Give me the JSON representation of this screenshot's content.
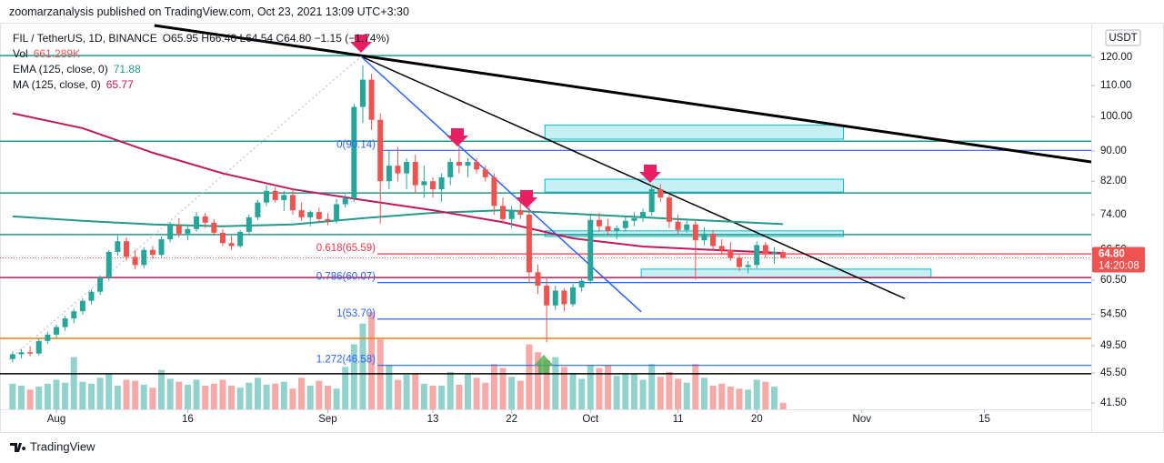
{
  "header": "zoomarzanalysis published on TradingView.com, Oct 23, 2021 13:09 UTC+3:30",
  "footer": "TradingView",
  "legend": {
    "symbol": "FIL / TetherUS, 1D, BINANCE",
    "ohlc": "O65.95 H66.40 L64.54 C64.80 −1.15 (−1.74%)",
    "vol_name": "Vol",
    "vol_value": "661.289K",
    "ema_name": "EMA (125, close, 0)",
    "ema_value": "71.88",
    "ma_name": "MA (125, close, 0)",
    "ma_value": "65.77"
  },
  "chart_data": {
    "type": "candlestick",
    "currency": "USDT",
    "price_label": "64.80",
    "countdown": "14:20:08",
    "log": true,
    "grid": false,
    "up_color": "#26a69a",
    "down_color": "#ef5350",
    "ylim": [
      40.7,
      133.4
    ],
    "yticks": [
      {
        "value": 120,
        "label": "120.00"
      },
      {
        "value": 110,
        "label": "110.00"
      },
      {
        "value": 100,
        "label": "100.00"
      },
      {
        "value": 90,
        "label": "90.00"
      },
      {
        "value": 82,
        "label": "82.00"
      },
      {
        "value": 74,
        "label": "74.00"
      },
      {
        "value": 66.5,
        "label": "66.50"
      },
      {
        "value": 60.5,
        "label": "60.50"
      },
      {
        "value": 54.5,
        "label": "54.50"
      },
      {
        "value": 49.5,
        "label": "49.50"
      },
      {
        "value": 45.5,
        "label": "45.50"
      },
      {
        "value": 41.5,
        "label": "41.50"
      }
    ],
    "xlim": [
      -0.4,
      123.2
    ],
    "xticks": [
      {
        "value": 5,
        "label": "Aug"
      },
      {
        "value": 20,
        "label": "16"
      },
      {
        "value": 36,
        "label": "Sep"
      },
      {
        "value": 48,
        "label": "13"
      },
      {
        "value": 57,
        "label": "22"
      },
      {
        "value": 66,
        "label": "Oct"
      },
      {
        "value": 76,
        "label": "11"
      },
      {
        "value": 85,
        "label": "20"
      },
      {
        "value": 97,
        "label": "Nov"
      },
      {
        "value": 111,
        "label": "15"
      }
    ],
    "candles": [
      [
        47.5,
        48.6,
        47,
        48.2
      ],
      [
        48.2,
        49,
        47.6,
        48.5
      ],
      [
        48.5,
        49.4,
        47.9,
        48.3
      ],
      [
        48.3,
        50.6,
        48,
        50.2
      ],
      [
        50.2,
        51.6,
        49.8,
        51.2
      ],
      [
        51.2,
        52.8,
        50.6,
        52.4
      ],
      [
        52.4,
        54.2,
        51.8,
        53.8
      ],
      [
        53.8,
        55.4,
        53,
        55
      ],
      [
        55,
        57.2,
        54.4,
        56.8
      ],
      [
        56.8,
        58.8,
        56.2,
        58.4
      ],
      [
        58.4,
        61.4,
        57.8,
        61
      ],
      [
        61,
        66.4,
        60.4,
        66
      ],
      [
        66,
        69.4,
        65.2,
        68.2
      ],
      [
        68.2,
        69,
        64.2,
        65
      ],
      [
        65,
        66.4,
        62.6,
        63.4
      ],
      [
        63.4,
        67,
        62.8,
        66.4
      ],
      [
        66.4,
        67.2,
        64.6,
        65.4
      ],
      [
        65.4,
        69.2,
        65,
        68.6
      ],
      [
        68.6,
        72.4,
        68,
        71.6
      ],
      [
        71.6,
        73.2,
        69,
        69.8
      ],
      [
        69.8,
        71.4,
        68.4,
        70.8
      ],
      [
        70.8,
        74.6,
        70.2,
        73.6
      ],
      [
        73.6,
        74.4,
        71,
        72.2
      ],
      [
        72.2,
        73,
        69.4,
        70
      ],
      [
        70,
        70.8,
        67.2,
        67.8
      ],
      [
        67.8,
        69.4,
        66.4,
        67.2
      ],
      [
        67.2,
        70.6,
        66.8,
        70.2
      ],
      [
        70.2,
        74,
        69.8,
        73.4
      ],
      [
        73.4,
        77.4,
        72.8,
        76.8
      ],
      [
        76.8,
        81,
        76,
        79.6
      ],
      [
        79.6,
        80.4,
        76.8,
        77.4
      ],
      [
        77.4,
        79.6,
        74.8,
        78.6
      ],
      [
        78.6,
        80,
        74,
        75
      ],
      [
        75,
        76.8,
        72.6,
        73.4
      ],
      [
        73.4,
        75,
        71.4,
        74.6
      ],
      [
        74.6,
        75.6,
        72.4,
        73
      ],
      [
        73,
        74.4,
        71.6,
        72.6
      ],
      [
        72.6,
        77.6,
        72,
        76.4
      ],
      [
        76.4,
        78.8,
        75.6,
        77.8
      ],
      [
        77.8,
        104,
        77,
        103
      ],
      [
        103,
        117,
        98,
        112
      ],
      [
        112,
        114,
        96,
        99
      ],
      [
        99,
        101,
        72,
        82
      ],
      [
        82,
        90,
        80,
        86
      ],
      [
        86,
        91,
        82,
        84
      ],
      [
        84,
        88,
        80,
        87
      ],
      [
        87,
        89,
        79,
        81
      ],
      [
        81,
        86,
        78,
        82
      ],
      [
        82,
        83,
        78,
        80
      ],
      [
        80,
        84,
        77,
        83
      ],
      [
        83,
        88,
        81,
        87
      ],
      [
        87,
        91,
        84,
        86
      ],
      [
        86,
        88,
        83,
        87
      ],
      [
        87,
        88,
        84,
        85
      ],
      [
        85,
        86,
        82,
        83
      ],
      [
        83,
        84,
        74,
        76
      ],
      [
        76,
        78,
        72,
        73
      ],
      [
        73,
        76,
        71,
        75
      ],
      [
        75,
        77,
        73,
        74
      ],
      [
        74,
        76,
        60,
        62
      ],
      [
        62,
        63.5,
        58,
        59.5
      ],
      [
        59.5,
        61,
        50,
        56
      ],
      [
        56,
        59.5,
        55.2,
        58.6
      ],
      [
        58.6,
        59,
        55,
        56.2
      ],
      [
        56.2,
        59.8,
        55.8,
        59.2
      ],
      [
        59.2,
        61,
        58.4,
        60.4
      ],
      [
        60.4,
        74,
        59.8,
        72.8
      ],
      [
        72.8,
        74.4,
        70.2,
        71.4
      ],
      [
        71.4,
        73,
        69.4,
        70.4
      ],
      [
        70.4,
        71.6,
        68.6,
        71
      ],
      [
        71,
        73.4,
        70.2,
        72.6
      ],
      [
        72.6,
        74.6,
        71.4,
        73.2
      ],
      [
        73.2,
        75.4,
        72.4,
        74.6
      ],
      [
        74.6,
        81,
        73.8,
        80
      ],
      [
        80,
        81.2,
        77,
        78
      ],
      [
        78,
        78.6,
        71,
        72.4
      ],
      [
        72.4,
        74,
        69.6,
        70.6
      ],
      [
        70.6,
        73,
        70,
        71.8
      ],
      [
        71.8,
        72.6,
        60.6,
        68.4
      ],
      [
        68.4,
        71.2,
        67.4,
        69.8
      ],
      [
        69.8,
        70.6,
        66.4,
        67.2
      ],
      [
        67.2,
        68.6,
        65.4,
        66.4
      ],
      [
        66.4,
        68,
        64.2,
        64.8
      ],
      [
        64.8,
        65.4,
        62.2,
        63
      ],
      [
        63,
        64.2,
        61.8,
        63.4
      ],
      [
        63.4,
        68.2,
        62.8,
        67.4
      ],
      [
        67.4,
        68,
        64.8,
        65.6
      ],
      [
        65.6,
        67,
        63.6,
        65.95
      ],
      [
        65.95,
        66.4,
        64.54,
        64.8
      ]
    ],
    "volume": [
      2600,
      2400,
      2000,
      2300,
      2600,
      3000,
      2700,
      5300,
      2800,
      2600,
      3200,
      3600,
      2400,
      3000,
      2900,
      2500,
      2200,
      4000,
      3100,
      2800,
      2500,
      3000,
      2400,
      2600,
      3000,
      2400,
      2200,
      2700,
      3200,
      2500,
      2600,
      2800,
      2100,
      3200,
      2400,
      2900,
      2400,
      2100,
      4300,
      6600,
      8700,
      9900,
      7100,
      4500,
      3000,
      3500,
      3600,
      2600,
      2400,
      2400,
      3800,
      2500,
      3600,
      3200,
      2700,
      4600,
      4200,
      3300,
      2900,
      6600,
      5800,
      5000,
      5300,
      4300,
      3700,
      3100,
      4500,
      4200,
      4500,
      3400,
      3600,
      3600,
      3000,
      4600,
      3300,
      3800,
      3100,
      2700,
      4600,
      3200,
      2400,
      2600,
      2300,
      2100,
      2000,
      3000,
      2800,
      2300,
      661.289
    ],
    "vlim": [
      0,
      12000
    ],
    "lines": [
      {
        "name": "EMA (125, close, 0)",
        "color": "#22998a",
        "x": [
          0,
          8,
          16,
          24,
          32,
          40,
          48,
          56,
          64,
          72,
          80,
          88
        ],
        "values": [
          73.6,
          72.6,
          71.8,
          71.4,
          71.8,
          73.2,
          74.4,
          75,
          74.2,
          73.4,
          72.6,
          71.88
        ]
      },
      {
        "name": "MA (125, close, 0)",
        "color": "#c2185b",
        "x": [
          0,
          8,
          16,
          24,
          32,
          40,
          48,
          56,
          64,
          72,
          80,
          88
        ],
        "values": [
          101,
          96.5,
          89.5,
          84,
          80,
          77.4,
          75,
          72.3,
          68.8,
          67.1,
          66.4,
          65.77
        ]
      }
    ],
    "hlines": [
      {
        "value": 120.6,
        "color": "#22998a"
      },
      {
        "value": 92.7,
        "color": "#22998a"
      },
      {
        "value": 79.1,
        "color": "#22998a"
      },
      {
        "value": 69.6,
        "color": "#22998a"
      },
      {
        "value": 61.0,
        "color": "#c2185b"
      },
      {
        "value": 50.6,
        "color": "#f57c00"
      },
      {
        "value": 45.4,
        "color": "#000000"
      }
    ],
    "fib": [
      {
        "label": "0(90.14)",
        "value": 90.14,
        "color": "#2962ff"
      },
      {
        "label": "0.618(65.59)",
        "value": 65.59,
        "color": "#f23645"
      },
      {
        "label": "0.786(60.07)",
        "value": 60.07,
        "color": "#2962ff"
      },
      {
        "label": "1(53.70)",
        "value": 53.7,
        "color": "#2962ff"
      },
      {
        "label": "1.272(46.58)",
        "value": 46.58,
        "color": "#2962ff"
      }
    ],
    "zones": [
      {
        "x": [
          60.8,
          94.9
        ],
        "y": [
          93.3,
          97.4
        ]
      },
      {
        "x": [
          60.8,
          94.9
        ],
        "y": [
          79.3,
          82.5
        ]
      },
      {
        "x": [
          60.8,
          94.9
        ],
        "y": [
          69.2,
          70.4
        ]
      },
      {
        "x": [
          71.8,
          104.9
        ],
        "y": [
          61.0,
          62.6
        ]
      }
    ],
    "trendlines": [
      {
        "x": [
          16.2,
          123.2
        ],
        "y": [
          132.3,
          87.0
        ],
        "color": "#000000",
        "width": 3
      },
      {
        "x": [
          39.8,
          101.9
        ],
        "y": [
          120.3,
          57.2
        ],
        "color": "#000000",
        "width": 1.5
      },
      {
        "x": [
          39.8,
          71.8
        ],
        "y": [
          120.3,
          54.9
        ],
        "color": "#2962ff",
        "width": 1.5
      },
      {
        "x": [
          -0.4,
          39.8
        ],
        "y": [
          47.4,
          120.3
        ],
        "color": "#b2b5be",
        "width": 1,
        "dash": true
      }
    ]
  }
}
